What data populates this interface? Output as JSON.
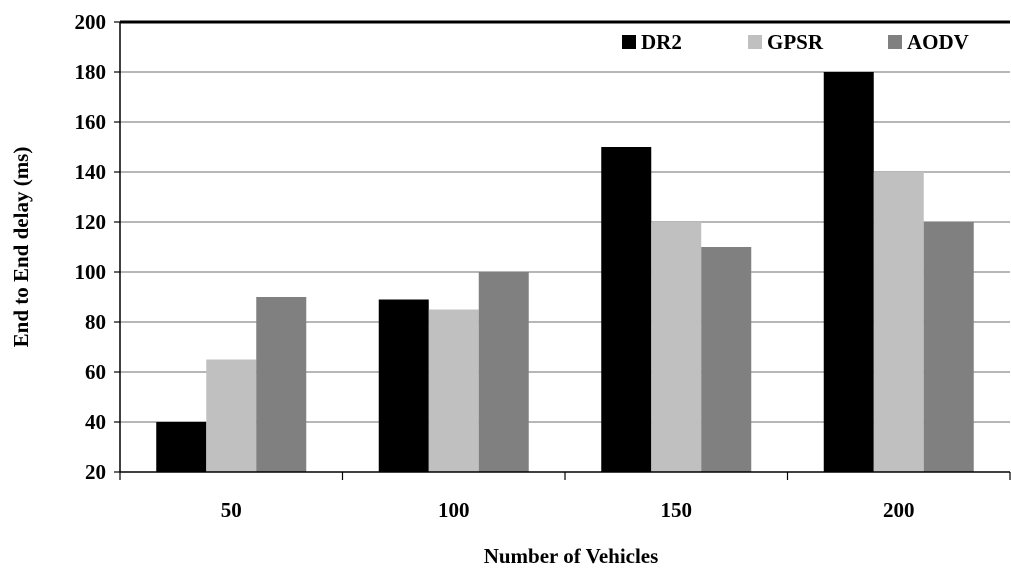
{
  "chart_data": {
    "type": "bar",
    "title": "",
    "xlabel": "Number of Vehicles",
    "ylabel": "End to End delay (ms)",
    "categories": [
      "50",
      "100",
      "150",
      "200"
    ],
    "ylim": [
      20,
      200
    ],
    "yticks": [
      20,
      40,
      60,
      80,
      100,
      120,
      140,
      160,
      180,
      200
    ],
    "grid": true,
    "legend_position": "top-right",
    "series": [
      {
        "name": "DR2",
        "color": "#000000",
        "values": [
          40,
          89,
          150,
          180
        ]
      },
      {
        "name": "GPSR",
        "color": "#c0c0c0",
        "values": [
          65,
          85,
          120,
          140
        ]
      },
      {
        "name": "AODV",
        "color": "#808080",
        "values": [
          90,
          100,
          110,
          120
        ]
      }
    ]
  }
}
